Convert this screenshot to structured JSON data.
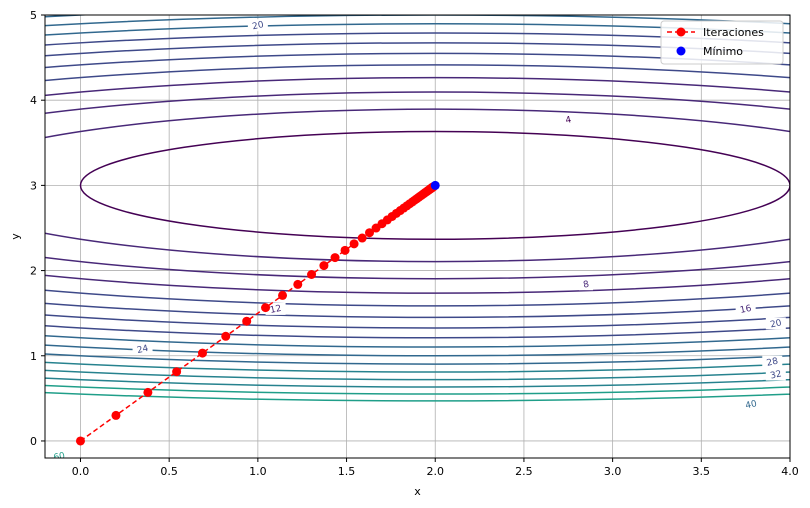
{
  "chart_data": {
    "type": "scatter",
    "title": "",
    "xlabel": "x",
    "ylabel": "y",
    "xlim": [
      -0.2,
      4.0
    ],
    "ylim": [
      -0.2,
      5.0
    ],
    "x_ticks": [
      0.0,
      0.5,
      1.0,
      1.5,
      2.0,
      2.5,
      3.0,
      3.5,
      4.0
    ],
    "x_tick_labels": [
      "0.0",
      "0.5",
      "1.0",
      "1.5",
      "2.0",
      "2.5",
      "3.0",
      "3.5",
      "4.0"
    ],
    "y_ticks": [
      0,
      1,
      2,
      3,
      4,
      5
    ],
    "y_tick_labels": [
      "0",
      "1",
      "2",
      "3",
      "4",
      "5"
    ],
    "grid": true,
    "legend_position": "top-right",
    "contour": {
      "function": "(x-2)^2 + 10*(y-3)^2",
      "center": [
        2,
        3
      ],
      "levels": [
        4,
        8,
        12,
        16,
        20,
        24,
        28,
        32,
        36,
        40,
        44,
        48,
        52,
        56,
        60,
        64
      ],
      "labels": [
        {
          "text": "4",
          "x": 2.75,
          "y": 3.77
        },
        {
          "text": "8",
          "x": 2.85,
          "y": 1.84
        },
        {
          "text": "12",
          "x": 1.1,
          "y": 1.55
        },
        {
          "text": "16",
          "x": 3.75,
          "y": 1.55
        },
        {
          "text": "20",
          "x": 3.92,
          "y": 1.38
        },
        {
          "text": "20",
          "x": 1.0,
          "y": 4.88
        },
        {
          "text": "24",
          "x": 0.35,
          "y": 1.08
        },
        {
          "text": "28",
          "x": 3.9,
          "y": 0.93
        },
        {
          "text": "32",
          "x": 3.92,
          "y": 0.78
        },
        {
          "text": "40",
          "x": 3.78,
          "y": 0.43
        },
        {
          "text": "60",
          "x": -0.12,
          "y": -0.18
        }
      ]
    },
    "series": [
      {
        "name": "Iteraciones",
        "style": "dashed-line-with-circles",
        "color": "#ff0000",
        "start": [
          0,
          0
        ],
        "end": [
          2,
          3
        ],
        "alpha": 0.1,
        "count": 51
      },
      {
        "name": "Mínimo",
        "style": "point",
        "color": "#0000ff",
        "x": [
          2.0
        ],
        "y": [
          3.0
        ]
      }
    ]
  }
}
